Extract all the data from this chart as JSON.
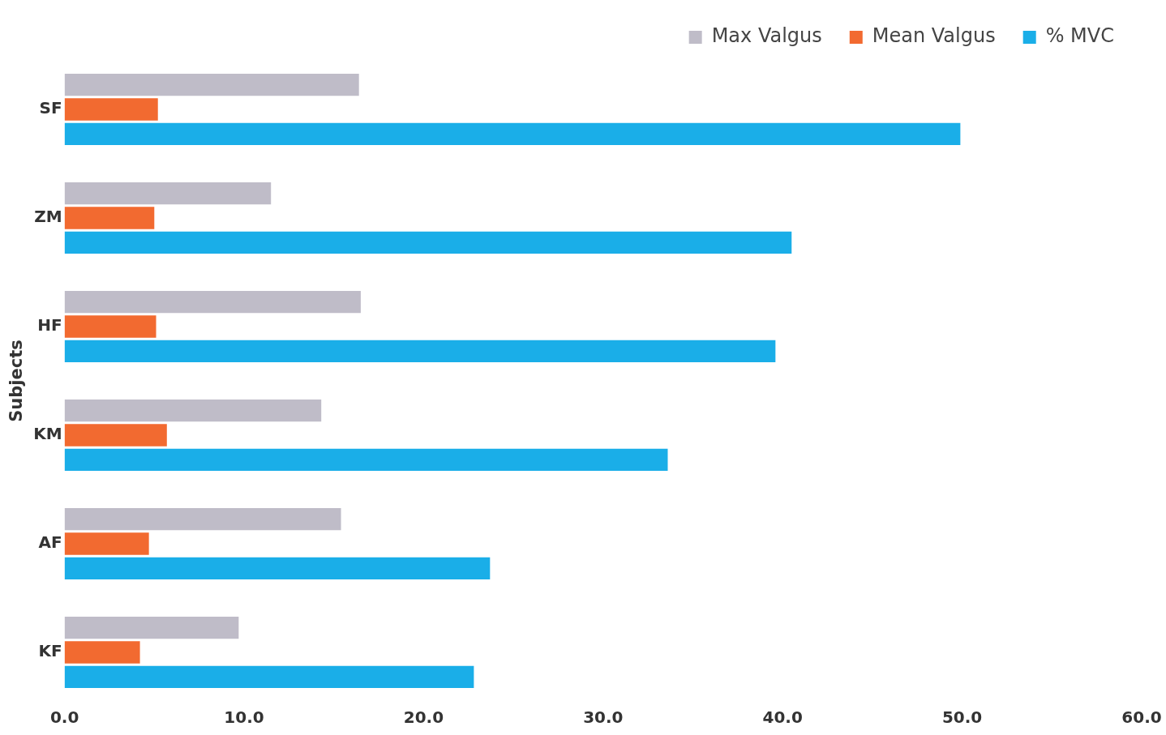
{
  "chart_data": {
    "type": "bar",
    "orientation": "horizontal",
    "ylabel": "Subjects",
    "categories": [
      "SF",
      "ZM",
      "HF",
      "KM",
      "AF",
      "KF"
    ],
    "series": [
      {
        "name": "Max Valgus",
        "color": "#bfbcc8",
        "values": [
          16.4,
          11.5,
          16.5,
          14.3,
          15.4,
          9.7
        ]
      },
      {
        "name": "Mean Valgus",
        "color": "#f26a30",
        "values": [
          5.2,
          5.0,
          5.1,
          5.7,
          4.7,
          4.2
        ]
      },
      {
        "name": "% MVC",
        "color": "#1aaee8",
        "values": [
          49.9,
          40.5,
          39.6,
          33.6,
          23.7,
          22.8
        ]
      }
    ],
    "xlim": [
      0,
      60
    ],
    "xticks": [
      {
        "value": 0,
        "label": "0.0"
      },
      {
        "value": 10,
        "label": "10.0"
      },
      {
        "value": 20,
        "label": "20.0"
      },
      {
        "value": 30,
        "label": "30.0"
      },
      {
        "value": 40,
        "label": "40.0"
      },
      {
        "value": 50,
        "label": "50.0"
      },
      {
        "value": 60,
        "label": "60.0"
      }
    ],
    "grid": false,
    "legend": "top right"
  }
}
